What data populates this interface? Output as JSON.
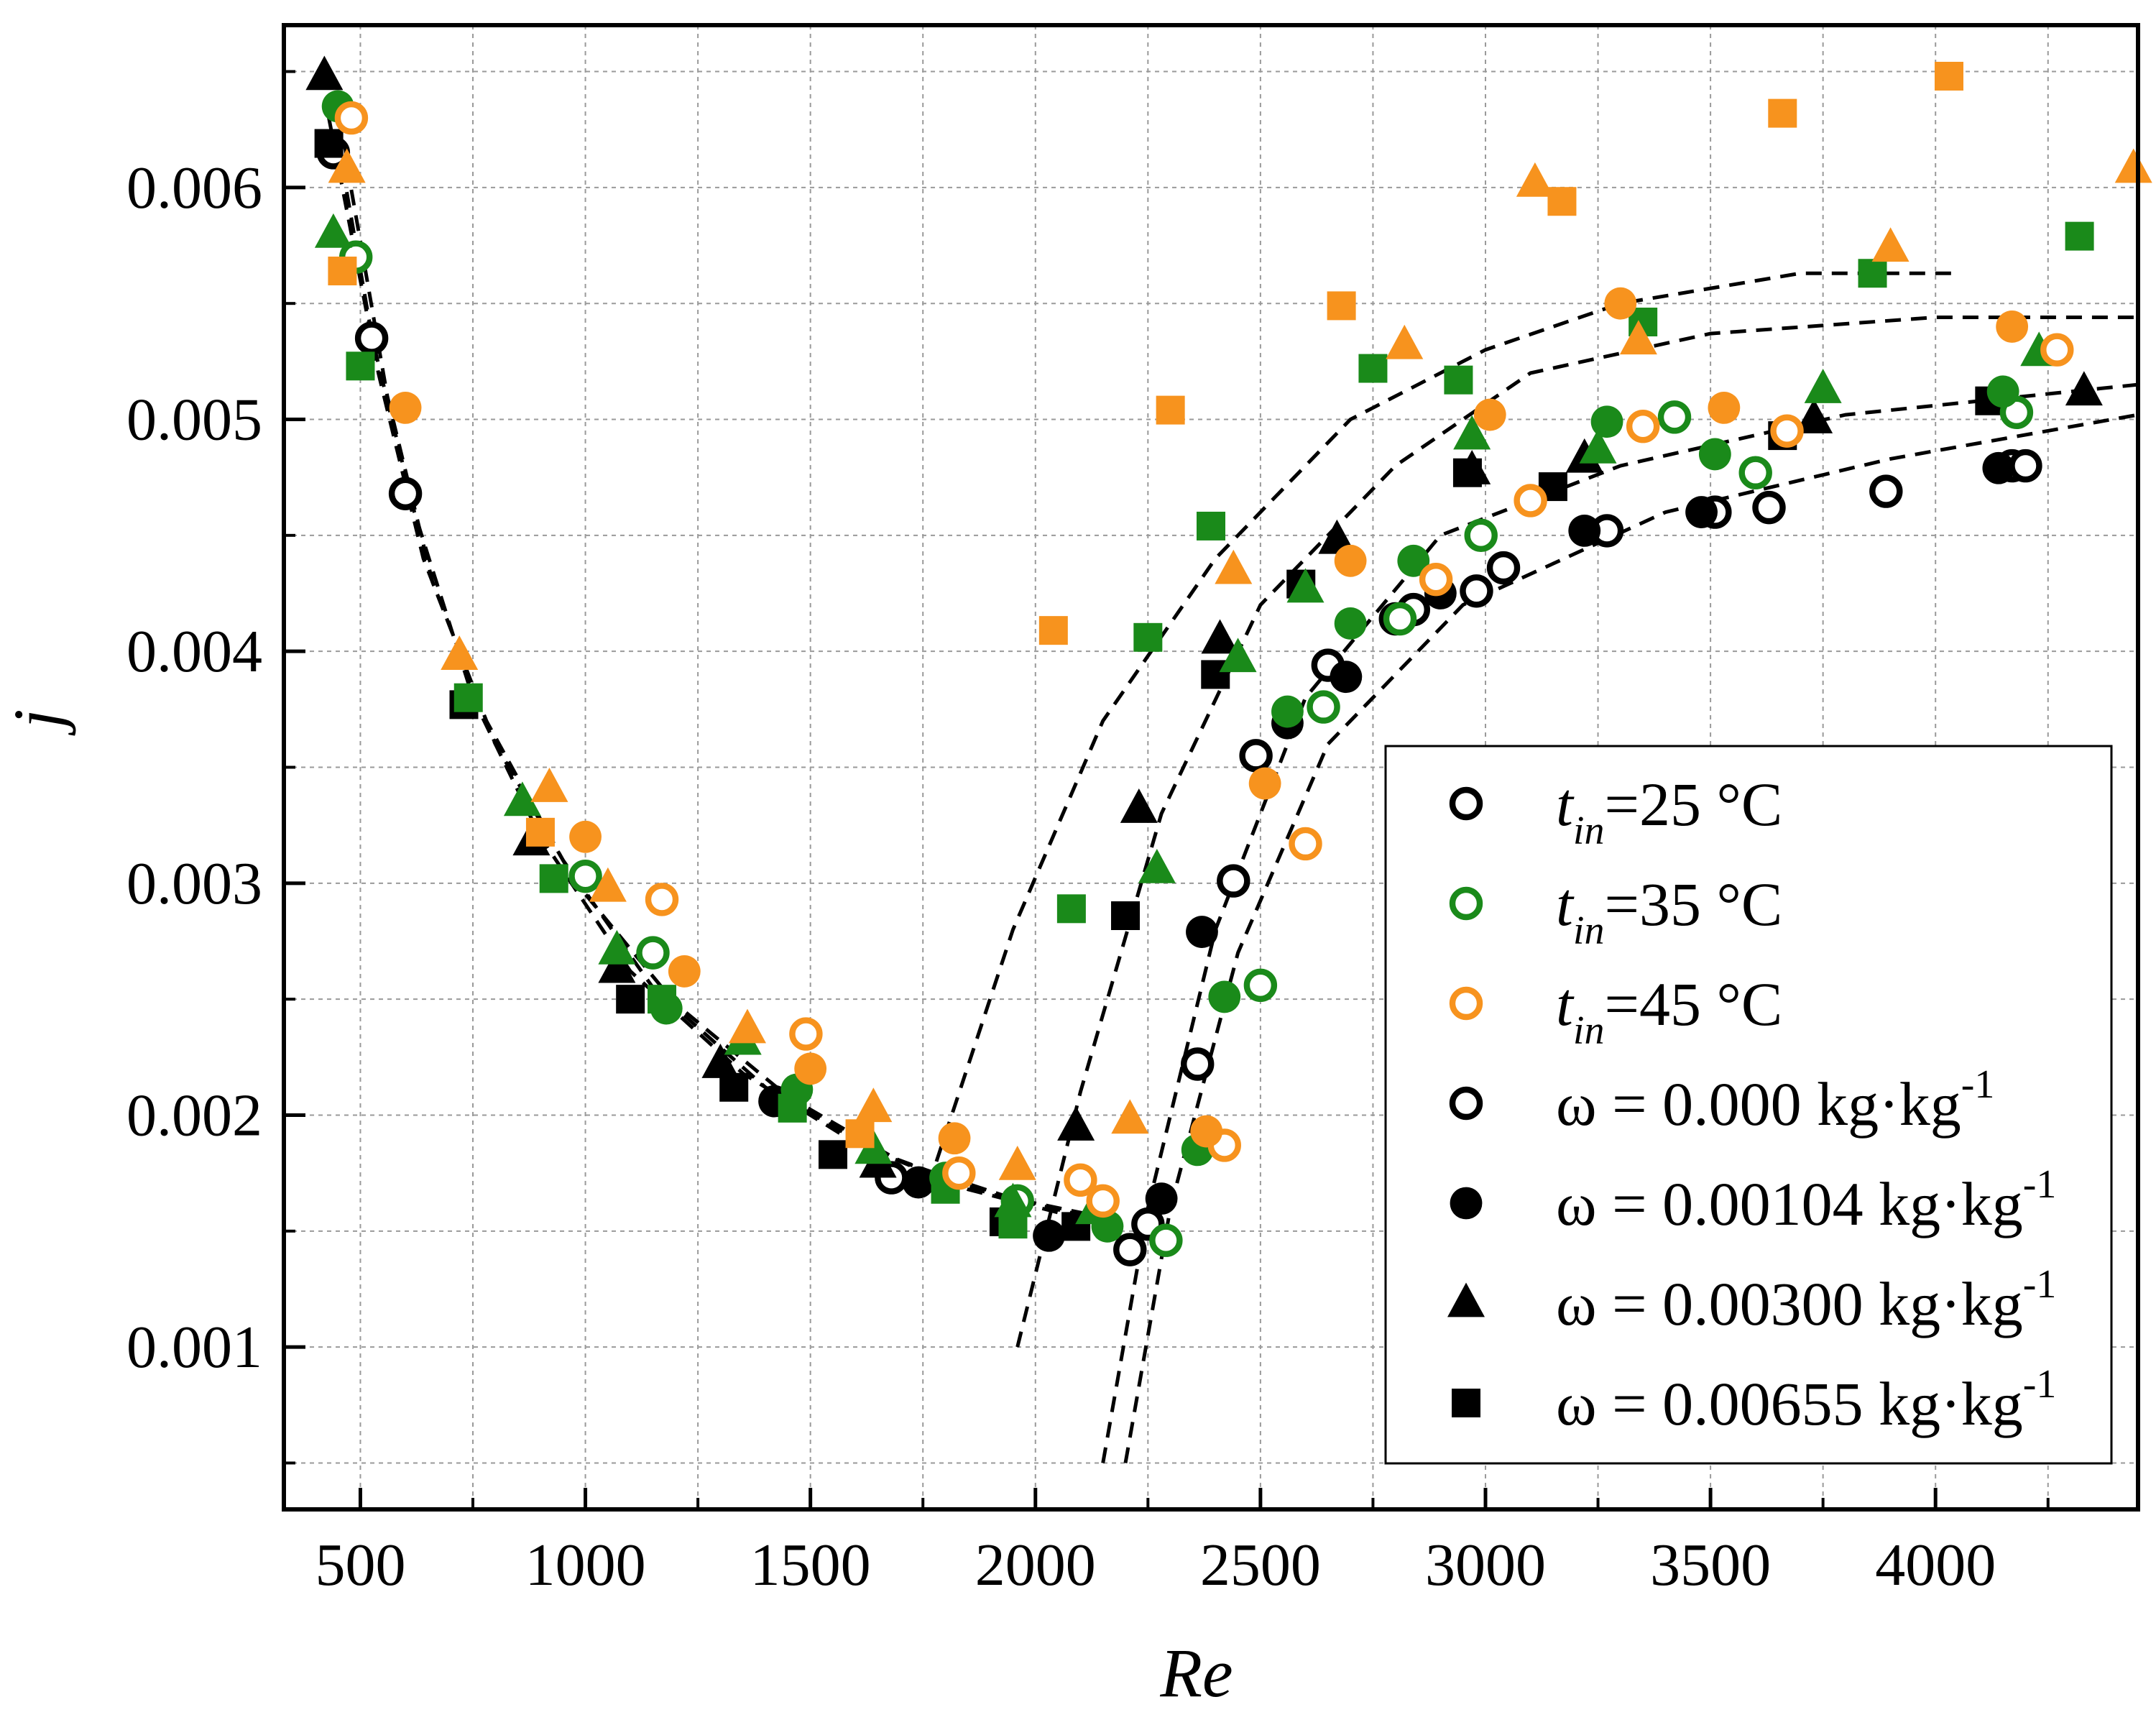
{
  "chart_data": {
    "type": "scatter",
    "xlabel": "Re",
    "ylabel": "j",
    "xlim": [
      330,
      4450
    ],
    "ylim": [
      0.0003,
      0.0067
    ],
    "x_ticks": [
      500,
      1000,
      1500,
      2000,
      2500,
      3000,
      3500,
      4000
    ],
    "x_tick_labels": [
      "500",
      "1000",
      "1500",
      "2000",
      "2500",
      "3000",
      "3500",
      "4000"
    ],
    "y_ticks": [
      0.001,
      0.002,
      0.003,
      0.004,
      0.005,
      0.006
    ],
    "y_tick_labels": [
      "0.001",
      "0.002",
      "0.003",
      "0.004",
      "0.005",
      "0.006"
    ],
    "grid": true,
    "legend_position": "bottom-right",
    "colors": {
      "t25": "#000000",
      "t35": "#1a8a1a",
      "t45": "#f7931e"
    },
    "legend": [
      {
        "name": "tin25",
        "prefix": "t",
        "sub": "in",
        "text": "=25 °C",
        "color": "#000000",
        "marker": "open-circle"
      },
      {
        "name": "tin35",
        "prefix": "t",
        "sub": "in",
        "text": "=35 °C",
        "color": "#1a8a1a",
        "marker": "open-circle"
      },
      {
        "name": "tin45",
        "prefix": "t",
        "sub": "in",
        "text": "=45 °C",
        "color": "#f7931e",
        "marker": "open-circle"
      },
      {
        "name": "omega0",
        "text": "ω = 0.000 kg·kg",
        "sup": "-1",
        "color": "#000000",
        "marker": "open-circle"
      },
      {
        "name": "omega104",
        "text": "ω = 0.00104 kg·kg",
        "sup": "-1",
        "color": "#000000",
        "marker": "filled-circle"
      },
      {
        "name": "omega300",
        "text": "ω = 0.00300 kg·kg",
        "sup": "-1",
        "color": "#000000",
        "marker": "triangle"
      },
      {
        "name": "omega655",
        "text": "ω = 0.00655 kg·kg",
        "sup": "-1",
        "color": "#000000",
        "marker": "square"
      }
    ],
    "series": [
      {
        "name": "t25 ω=0.000",
        "temp": 25,
        "marker": "open-circle",
        "color": "#000000",
        "points": [
          [
            440,
            0.00615
          ],
          [
            525,
            0.00535
          ],
          [
            600,
            0.00468
          ],
          [
            1680,
            0.00173
          ],
          [
            2210,
            0.00142
          ],
          [
            2250,
            0.00153
          ],
          [
            2360,
            0.00222
          ],
          [
            2440,
            0.00301
          ],
          [
            2490,
            0.00355
          ],
          [
            2650,
            0.00394
          ],
          [
            2800,
            0.00414
          ],
          [
            2840,
            0.00418
          ],
          [
            2980,
            0.00426
          ],
          [
            3040,
            0.00436
          ],
          [
            3270,
            0.00452
          ],
          [
            3510,
            0.0046
          ],
          [
            3630,
            0.00462
          ],
          [
            3890,
            0.00469
          ],
          [
            4170,
            0.0048
          ],
          [
            4200,
            0.0048
          ]
        ]
      },
      {
        "name": "t25 ω=0.00104",
        "temp": 25,
        "marker": "filled-circle",
        "color": "#000000",
        "points": [
          [
            1420,
            0.00206
          ],
          [
            1740,
            0.00171
          ],
          [
            2030,
            0.00148
          ],
          [
            2280,
            0.00164
          ],
          [
            2370,
            0.00279
          ],
          [
            2560,
            0.00369
          ],
          [
            2690,
            0.00389
          ],
          [
            2900,
            0.00425
          ],
          [
            3220,
            0.00452
          ],
          [
            3480,
            0.0046
          ],
          [
            4140,
            0.00479
          ]
        ]
      },
      {
        "name": "t25 ω=0.00300",
        "temp": 25,
        "marker": "triangle",
        "color": "#000000",
        "points": [
          [
            420,
            0.00648
          ],
          [
            880,
            0.00318
          ],
          [
            1070,
            0.00263
          ],
          [
            1300,
            0.00222
          ],
          [
            1650,
            0.00179
          ],
          [
            2090,
            0.00195
          ],
          [
            2230,
            0.00332
          ],
          [
            2410,
            0.00405
          ],
          [
            2670,
            0.00448
          ],
          [
            2970,
            0.00478
          ],
          [
            3220,
            0.00483
          ],
          [
            3730,
            0.005
          ],
          [
            4330,
            0.00512
          ]
        ]
      },
      {
        "name": "t25 ω=0.00655",
        "temp": 25,
        "marker": "square",
        "color": "#000000",
        "points": [
          [
            430,
            0.00619
          ],
          [
            730,
            0.00377
          ],
          [
            1100,
            0.0025
          ],
          [
            1330,
            0.00212
          ],
          [
            1550,
            0.00183
          ],
          [
            1930,
            0.00154
          ],
          [
            2090,
            0.00152
          ],
          [
            2200,
            0.00286
          ],
          [
            2400,
            0.0039
          ],
          [
            2590,
            0.00429
          ],
          [
            2960,
            0.00477
          ],
          [
            3150,
            0.00471
          ],
          [
            3660,
            0.00493
          ],
          [
            4120,
            0.00508
          ]
        ]
      },
      {
        "name": "t35 ω=0.000",
        "temp": 35,
        "marker": "open-circle",
        "color": "#1a8a1a",
        "points": [
          [
            490,
            0.0057
          ],
          [
            1000,
            0.00303
          ],
          [
            1150,
            0.0027
          ],
          [
            1960,
            0.00163
          ],
          [
            2290,
            0.00146
          ],
          [
            2500,
            0.00256
          ],
          [
            2640,
            0.00376
          ],
          [
            2810,
            0.00414
          ],
          [
            2990,
            0.0045
          ],
          [
            3420,
            0.00501
          ],
          [
            3600,
            0.00477
          ],
          [
            4180,
            0.00503
          ]
        ]
      },
      {
        "name": "t35 ω=0.00104",
        "temp": 35,
        "marker": "filled-circle",
        "color": "#1a8a1a",
        "points": [
          [
            450,
            0.00635
          ],
          [
            1180,
            0.00246
          ],
          [
            1470,
            0.00211
          ],
          [
            1800,
            0.00173
          ],
          [
            2160,
            0.00152
          ],
          [
            2360,
            0.00185
          ],
          [
            2420,
            0.00251
          ],
          [
            2560,
            0.00374
          ],
          [
            2700,
            0.00412
          ],
          [
            2840,
            0.00439
          ],
          [
            3270,
            0.00499
          ],
          [
            3510,
            0.00485
          ],
          [
            4150,
            0.00512
          ]
        ]
      },
      {
        "name": "t35 ω=0.00300",
        "temp": 35,
        "marker": "triangle",
        "color": "#1a8a1a",
        "points": [
          [
            440,
            0.0058
          ],
          [
            860,
            0.00335
          ],
          [
            1070,
            0.00271
          ],
          [
            1350,
            0.00232
          ],
          [
            1640,
            0.00185
          ],
          [
            1950,
            0.00162
          ],
          [
            2130,
            0.00159
          ],
          [
            2270,
            0.00306
          ],
          [
            2450,
            0.00397
          ],
          [
            2600,
            0.00427
          ],
          [
            2970,
            0.00493
          ],
          [
            3250,
            0.00487
          ],
          [
            3750,
            0.00513
          ],
          [
            4230,
            0.00529
          ]
        ]
      },
      {
        "name": "t35 ω=0.00655",
        "temp": 35,
        "marker": "square",
        "color": "#1a8a1a",
        "points": [
          [
            500,
            0.00523
          ],
          [
            740,
            0.0038
          ],
          [
            930,
            0.00302
          ],
          [
            1170,
            0.0025
          ],
          [
            1460,
            0.00203
          ],
          [
            1800,
            0.00168
          ],
          [
            1950,
            0.00153
          ],
          [
            2080,
            0.00289
          ],
          [
            2250,
            0.00406
          ],
          [
            2390,
            0.00454
          ],
          [
            2750,
            0.00522
          ],
          [
            2940,
            0.00517
          ],
          [
            3350,
            0.00542
          ],
          [
            3860,
            0.00563
          ],
          [
            4320,
            0.00579
          ]
        ]
      },
      {
        "name": "t45 ω=0.000",
        "temp": 45,
        "marker": "open-circle",
        "color": "#f7931e",
        "points": [
          [
            480,
            0.0063
          ],
          [
            1170,
            0.00293
          ],
          [
            1490,
            0.00235
          ],
          [
            1830,
            0.00175
          ],
          [
            2100,
            0.00172
          ],
          [
            2150,
            0.00163
          ],
          [
            2420,
            0.00187
          ],
          [
            2600,
            0.00317
          ],
          [
            2890,
            0.00431
          ],
          [
            3100,
            0.00465
          ],
          [
            3350,
            0.00497
          ],
          [
            3670,
            0.00495
          ],
          [
            4270,
            0.0053
          ]
        ]
      },
      {
        "name": "t45 ω=0.00104",
        "temp": 45,
        "marker": "filled-circle",
        "color": "#f7931e",
        "points": [
          [
            600,
            0.00505
          ],
          [
            1000,
            0.0032
          ],
          [
            1220,
            0.00262
          ],
          [
            1500,
            0.0022
          ],
          [
            1820,
            0.0019
          ],
          [
            2380,
            0.00193
          ],
          [
            2510,
            0.00343
          ],
          [
            2700,
            0.00439
          ],
          [
            3010,
            0.00502
          ],
          [
            3300,
            0.0055
          ],
          [
            3530,
            0.00505
          ],
          [
            4170,
            0.0054
          ]
        ]
      },
      {
        "name": "t45 ω=0.00300",
        "temp": 45,
        "marker": "triangle",
        "color": "#f7931e",
        "points": [
          [
            470,
            0.00608
          ],
          [
            720,
            0.00398
          ],
          [
            920,
            0.00341
          ],
          [
            1050,
            0.00298
          ],
          [
            1360,
            0.00237
          ],
          [
            1640,
            0.00203
          ],
          [
            1960,
            0.00178
          ],
          [
            2210,
            0.00198
          ],
          [
            2440,
            0.00435
          ],
          [
            2820,
            0.00532
          ],
          [
            3110,
            0.00602
          ],
          [
            3340,
            0.00534
          ],
          [
            3900,
            0.00574
          ],
          [
            4440,
            0.00608
          ]
        ]
      },
      {
        "name": "t45 ω=0.00655",
        "temp": 45,
        "marker": "square",
        "color": "#f7931e",
        "points": [
          [
            460,
            0.00564
          ],
          [
            900,
            0.00322
          ],
          [
            1610,
            0.00192
          ],
          [
            2040,
            0.00409
          ],
          [
            2300,
            0.00504
          ],
          [
            2680,
            0.00549
          ],
          [
            3170,
            0.00594
          ],
          [
            3660,
            0.00632
          ],
          [
            4030,
            0.00648
          ]
        ]
      }
    ]
  }
}
